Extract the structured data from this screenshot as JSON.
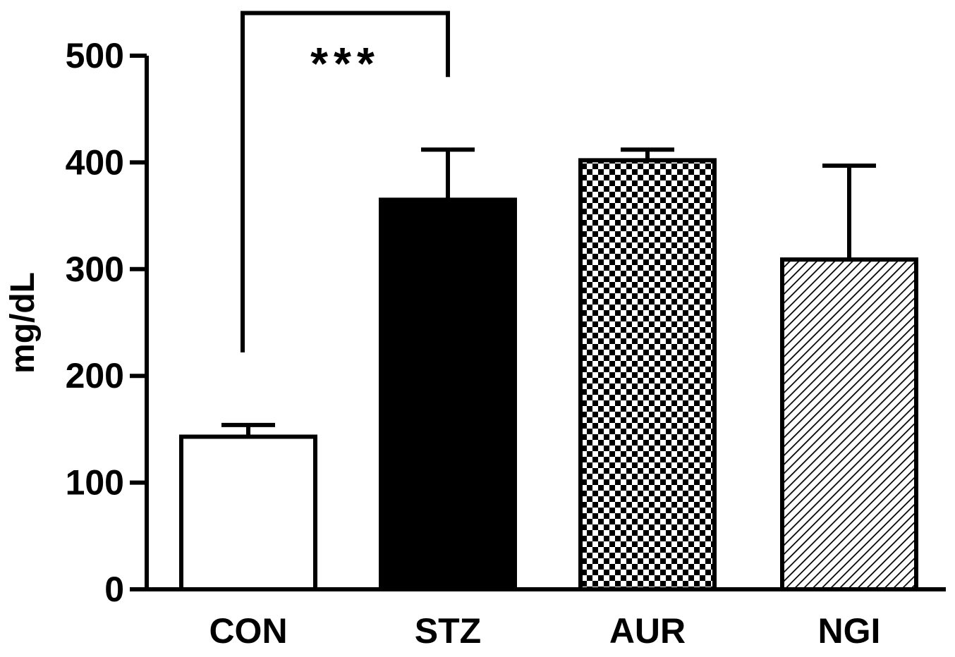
{
  "chart_data": {
    "type": "bar",
    "title": "",
    "xlabel": "",
    "ylabel": "mg/dL",
    "ylim": [
      0,
      500
    ],
    "yticks": [
      0,
      100,
      200,
      300,
      400,
      500
    ],
    "grid": false,
    "categories": [
      "CON",
      "STZ",
      "AUR",
      "NGI"
    ],
    "values": [
      143,
      365,
      402,
      309
    ],
    "error_upper": [
      154,
      412,
      412,
      397
    ],
    "bar_fills": [
      "white",
      "solid-black",
      "checkerboard",
      "diagonal-hatch"
    ],
    "significance": [
      {
        "from": "CON",
        "to": "STZ",
        "label": "***",
        "bracket_y": 540,
        "left_drop_to": 222,
        "right_drop_to": 480
      }
    ]
  }
}
